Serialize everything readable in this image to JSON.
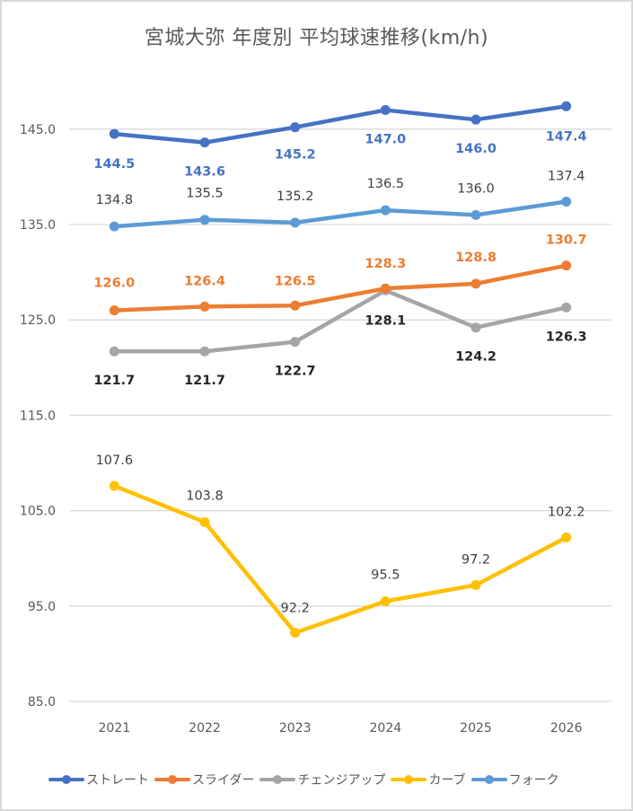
{
  "chart_data": {
    "type": "line",
    "title": "宮城大弥 年度別 平均球速推移(km/h)",
    "xlabel": "",
    "ylabel": "",
    "categories": [
      "2021",
      "2022",
      "2023",
      "2024",
      "2025",
      "2026"
    ],
    "ylim": [
      85,
      155
    ],
    "yticks": [
      "85.0",
      "95.0",
      "105.0",
      "115.0",
      "125.0",
      "135.0",
      "145.0"
    ],
    "ytick_values": [
      85,
      95,
      105,
      115,
      125,
      135,
      145
    ],
    "grid": true,
    "legend_position": "bottom",
    "series": [
      {
        "name": "ストレート",
        "color": "#4472C4",
        "label_color": "#4472C4",
        "label_bold": true,
        "label_position": "below",
        "values": [
          144.5,
          143.6,
          145.2,
          147.0,
          146.0,
          147.4
        ],
        "labels": [
          "144.5",
          "143.6",
          "145.2",
          "147.0",
          "146.0",
          "147.4"
        ]
      },
      {
        "name": "スライダー",
        "color": "#ED7D31",
        "label_color": "#ED7D31",
        "label_bold": true,
        "label_position": "above",
        "values": [
          126.0,
          126.4,
          126.5,
          128.3,
          128.8,
          130.7
        ],
        "labels": [
          "126.0",
          "126.4",
          "126.5",
          "128.3",
          "128.8",
          "130.7"
        ]
      },
      {
        "name": "チェンジアップ",
        "color": "#A5A5A5",
        "label_color": "#262626",
        "label_bold": true,
        "label_position": "below",
        "values": [
          121.7,
          121.7,
          122.7,
          128.1,
          124.2,
          126.3
        ],
        "labels": [
          "121.7",
          "121.7",
          "122.7",
          "128.1",
          "124.2",
          "126.3"
        ]
      },
      {
        "name": "カーブ",
        "color": "#FFC000",
        "label_color": "#404040",
        "label_bold": false,
        "label_position": "above",
        "values": [
          107.6,
          103.8,
          92.2,
          95.5,
          97.2,
          102.2
        ],
        "labels": [
          "107.6",
          "103.8",
          "92.2",
          "95.5",
          "97.2",
          "102.2"
        ]
      },
      {
        "name": "フォーク",
        "color": "#5B9BD5",
        "label_color": "#404040",
        "label_bold": false,
        "label_position": "above",
        "values": [
          134.8,
          135.5,
          135.2,
          136.5,
          136.0,
          137.4
        ],
        "labels": [
          "134.8",
          "135.5",
          "135.2",
          "136.5",
          "136.0",
          "137.4"
        ]
      }
    ]
  },
  "legend_items": [
    {
      "label": "ストレート",
      "color": "#4472C4"
    },
    {
      "label": "スライダー",
      "color": "#ED7D31"
    },
    {
      "label": "チェンジアップ",
      "color": "#A5A5A5"
    },
    {
      "label": "カーブ",
      "color": "#FFC000"
    },
    {
      "label": "フォーク",
      "color": "#5B9BD5"
    }
  ]
}
